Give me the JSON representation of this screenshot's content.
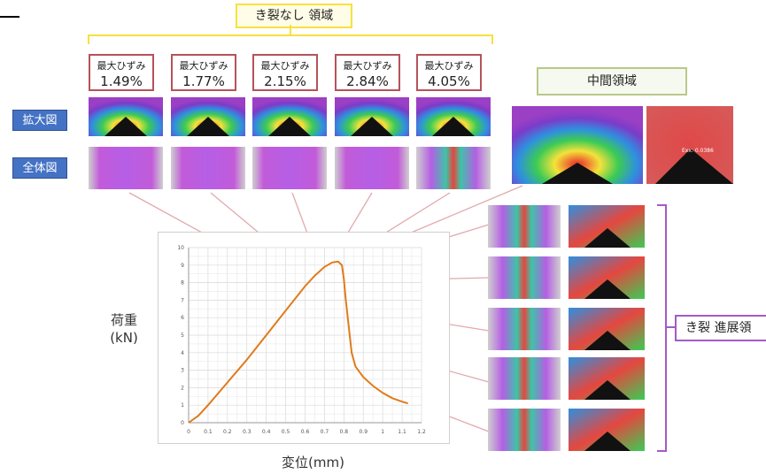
{
  "labels": {
    "top_region": "き裂なし 領域",
    "enlarged": "拡大図",
    "whole": "全体図",
    "middle_region": "中間領域",
    "propagation_region": "き裂 進展領",
    "y_axis_line1": "荷重",
    "y_axis_line2": "(kN)",
    "x_axis": "変位(mm)",
    "inset_text": "Exx: 0.0386"
  },
  "strain_boxes": [
    {
      "label": "最大ひずみ",
      "value": "1.49%"
    },
    {
      "label": "最大ひずみ",
      "value": "1.77%"
    },
    {
      "label": "最大ひずみ",
      "value": "2.15%"
    },
    {
      "label": "最大ひずみ",
      "value": "2.84%"
    },
    {
      "label": "最大ひずみ",
      "value": "4.05%"
    }
  ],
  "colors": {
    "yellow_bracket": "#f6e23c",
    "red_box": "#b5535a",
    "blue_label": "#4472c4",
    "middle_border": "#b8c98a",
    "purple_bracket": "#a25bc8",
    "curve": "#e07b1c",
    "connector": "#e2a9ad"
  },
  "chart_data": {
    "type": "line",
    "xlim": [
      0,
      1.2
    ],
    "ylim": [
      0,
      10
    ],
    "x_ticks": [
      "0",
      "0.1",
      "0.2",
      "0.3",
      "0.4",
      "0.5",
      "0.6",
      "0.7",
      "0.8",
      "0.9",
      "1",
      "1.1",
      "1.2"
    ],
    "y_ticks": [
      "0",
      "1",
      "2",
      "3",
      "4",
      "5",
      "6",
      "7",
      "8",
      "9",
      "10"
    ],
    "xlabel": "変位(mm)",
    "ylabel": "荷重 (kN)",
    "grid": true,
    "series": [
      {
        "x": [
          0,
          0.05,
          0.1,
          0.2,
          0.3,
          0.4,
          0.5,
          0.6,
          0.65,
          0.7,
          0.74,
          0.77,
          0.79,
          0.8,
          0.81,
          0.82,
          0.83,
          0.84,
          0.86,
          0.9,
          0.95,
          1.0,
          1.05,
          1.1,
          1.13
        ],
        "y": [
          0,
          0.4,
          1.0,
          2.3,
          3.6,
          5.0,
          6.4,
          7.8,
          8.4,
          8.9,
          9.15,
          9.2,
          9.0,
          8.2,
          7.0,
          6.0,
          5.0,
          4.0,
          3.2,
          2.6,
          2.1,
          1.7,
          1.4,
          1.2,
          1.1
        ]
      }
    ]
  }
}
